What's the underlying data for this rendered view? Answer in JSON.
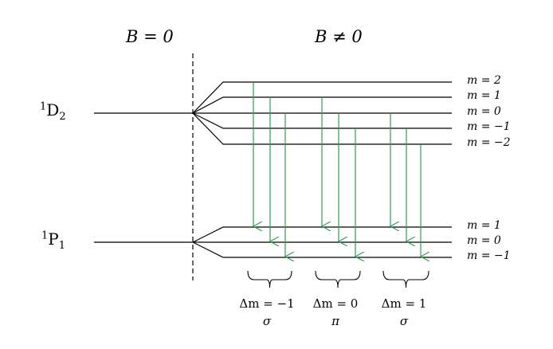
{
  "headers": {
    "b_zero": "B = 0",
    "b_nonzero": "B ≠ 0"
  },
  "terms": {
    "upper": {
      "sup": "1",
      "letter": "D",
      "sub": "2"
    },
    "lower": {
      "sup": "1",
      "letter": "P",
      "sub": "1"
    }
  },
  "upper_sublevels": [
    "m = 2",
    "m = 1",
    "m = 0",
    "m = −1",
    "m = −2"
  ],
  "lower_sublevels": [
    "m = 1",
    "m = 0",
    "m = −1"
  ],
  "transition_groups": [
    {
      "delta": "Δm = −1",
      "polarization": "σ"
    },
    {
      "delta": "Δm = 0",
      "polarization": "π"
    },
    {
      "delta": "Δm = 1",
      "polarization": "σ"
    }
  ],
  "transitions": [
    {
      "from_m": 2,
      "to_m": 1
    },
    {
      "from_m": 1,
      "to_m": 0
    },
    {
      "from_m": 0,
      "to_m": -1
    },
    {
      "from_m": 1,
      "to_m": 1
    },
    {
      "from_m": 0,
      "to_m": 0
    },
    {
      "from_m": -1,
      "to_m": -1
    },
    {
      "from_m": 0,
      "to_m": 1
    },
    {
      "from_m": -1,
      "to_m": 0
    },
    {
      "from_m": -2,
      "to_m": -1
    }
  ],
  "colors": {
    "lines": "#000000",
    "arrows": "#2e9e52"
  }
}
